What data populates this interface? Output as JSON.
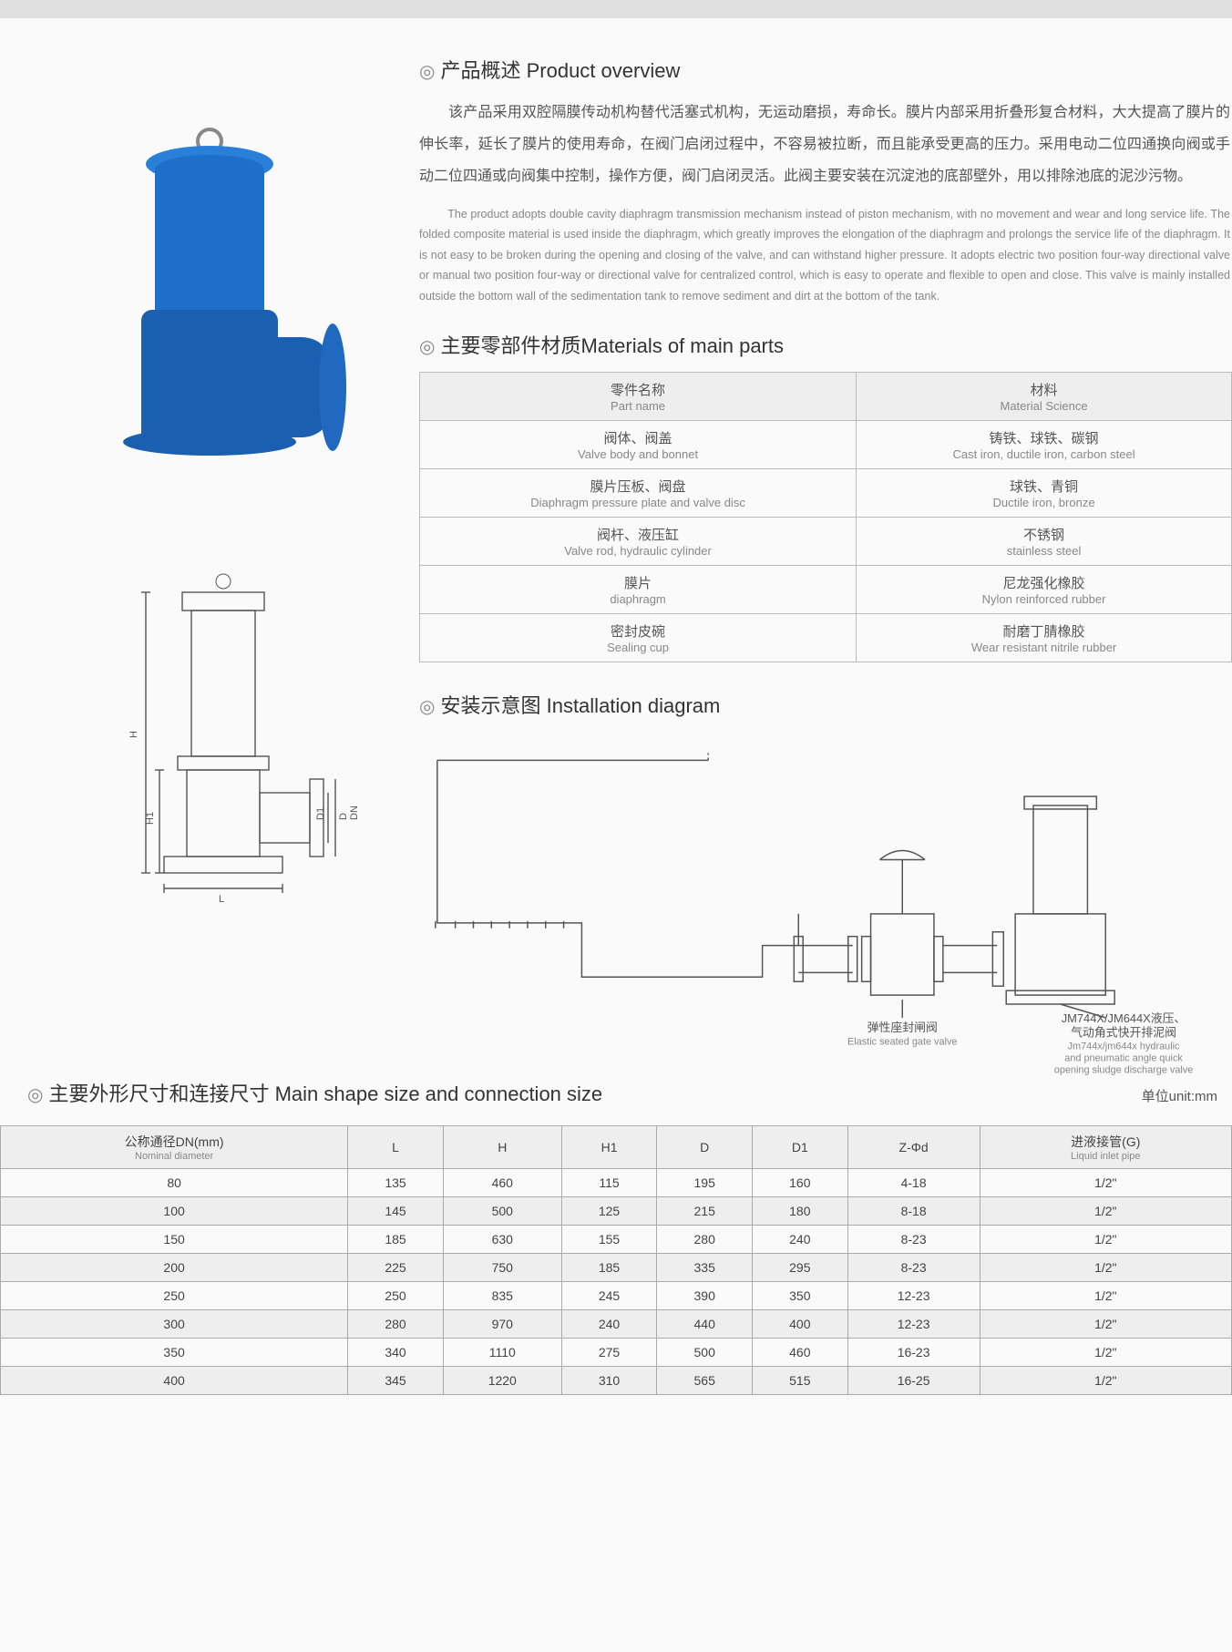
{
  "sections": {
    "overview": {
      "title_cn": "产品概述",
      "title_en": "Product overview",
      "desc_cn": "该产品采用双腔隔膜传动机构替代活塞式机构，无运动磨损，寿命长。膜片内部采用折叠形复合材料，大大提高了膜片的伸长率，延长了膜片的使用寿命，在阀门启闭过程中，不容易被拉断，而且能承受更高的压力。采用电动二位四通换向阀或手动二位四通或向阀集中控制，操作方便，阀门启闭灵活。此阀主要安装在沉淀池的底部壁外，用以排除池底的泥沙污物。",
      "desc_en": "The product adopts double cavity diaphragm transmission mechanism instead of piston mechanism, with no movement and wear and long service life. The folded composite material is used inside the diaphragm, which greatly improves the elongation of the diaphragm and prolongs the service life of the diaphragm. It is not easy to be broken during the opening and closing of the valve, and can withstand higher pressure. It adopts electric two position four-way directional valve or manual two position four-way or directional valve for centralized control, which is easy to operate and flexible to open and close. This valve is mainly installed outside the bottom wall of the sedimentation tank to remove sediment and dirt at the bottom of the tank."
    },
    "materials": {
      "title_cn": "主要零部件材质",
      "title_en": "Materials of main parts",
      "header_part_cn": "零件名称",
      "header_part_en": "Part name",
      "header_mat_cn": "材料",
      "header_mat_en": "Material Science",
      "rows": [
        {
          "part_cn": "阀体、阀盖",
          "part_en": "Valve body and bonnet",
          "mat_cn": "铸铁、球铁、碳钢",
          "mat_en": "Cast iron, ductile iron, carbon steel"
        },
        {
          "part_cn": "膜片压板、阀盘",
          "part_en": "Diaphragm pressure plate and valve disc",
          "mat_cn": "球铁、青铜",
          "mat_en": "Ductile iron, bronze"
        },
        {
          "part_cn": "阀杆、液压缸",
          "part_en": "Valve rod, hydraulic cylinder",
          "mat_cn": "不锈钢",
          "mat_en": "stainless steel"
        },
        {
          "part_cn": "膜片",
          "part_en": "diaphragm",
          "mat_cn": "尼龙强化橡胶",
          "mat_en": "Nylon reinforced rubber"
        },
        {
          "part_cn": "密封皮碗",
          "part_en": "Sealing cup",
          "mat_cn": "耐磨丁腈橡胶",
          "mat_en": "Wear resistant nitrile rubber"
        }
      ]
    },
    "install": {
      "title_cn": "安装示意图",
      "title_en": "Installation diagram",
      "label1_cn": "弹性座封闸阀",
      "label1_en": "Elastic seated gate valve",
      "label2_cn": "JM744X/JM644X液压、气动角式快开排泥阀",
      "label2_en1": "Jm744x/jm644x hydraulic",
      "label2_en2": "and pneumatic angle quick",
      "label2_en3": "opening sludge discharge valve"
    },
    "sizes": {
      "title_cn": "主要外形尺寸和连接尺寸",
      "title_en": "Main shape size and connection size",
      "unit": "单位unit:mm",
      "columns": [
        {
          "cn": "公称通径DN(mm)",
          "en": "Nominal diameter"
        },
        {
          "cn": "L",
          "en": ""
        },
        {
          "cn": "H",
          "en": ""
        },
        {
          "cn": "H1",
          "en": ""
        },
        {
          "cn": "D",
          "en": ""
        },
        {
          "cn": "D1",
          "en": ""
        },
        {
          "cn": "Z-Φd",
          "en": ""
        },
        {
          "cn": "进液接管(G)",
          "en": "Liquid inlet pipe"
        }
      ],
      "rows": [
        [
          "80",
          "135",
          "460",
          "115",
          "195",
          "160",
          "4-18",
          "1/2\""
        ],
        [
          "100",
          "145",
          "500",
          "125",
          "215",
          "180",
          "8-18",
          "1/2\""
        ],
        [
          "150",
          "185",
          "630",
          "155",
          "280",
          "240",
          "8-23",
          "1/2\""
        ],
        [
          "200",
          "225",
          "750",
          "185",
          "335",
          "295",
          "8-23",
          "1/2\""
        ],
        [
          "250",
          "250",
          "835",
          "245",
          "390",
          "350",
          "12-23",
          "1/2\""
        ],
        [
          "300",
          "280",
          "970",
          "240",
          "440",
          "400",
          "12-23",
          "1/2\""
        ],
        [
          "350",
          "340",
          "1110",
          "275",
          "500",
          "460",
          "16-23",
          "1/2\""
        ],
        [
          "400",
          "345",
          "1220",
          "310",
          "565",
          "515",
          "16-25",
          "1/2\""
        ]
      ]
    },
    "dim_labels": {
      "H": "H",
      "H1": "H1",
      "L": "L",
      "D": "D",
      "D1": "D1",
      "DN": "DN"
    }
  },
  "colors": {
    "valve_blue": "#1f6fc9",
    "valve_dark": "#1a5fb0",
    "text_main": "#444444",
    "text_sub": "#888888",
    "border": "#aaaaaa",
    "row_alt": "#eeeeee"
  }
}
